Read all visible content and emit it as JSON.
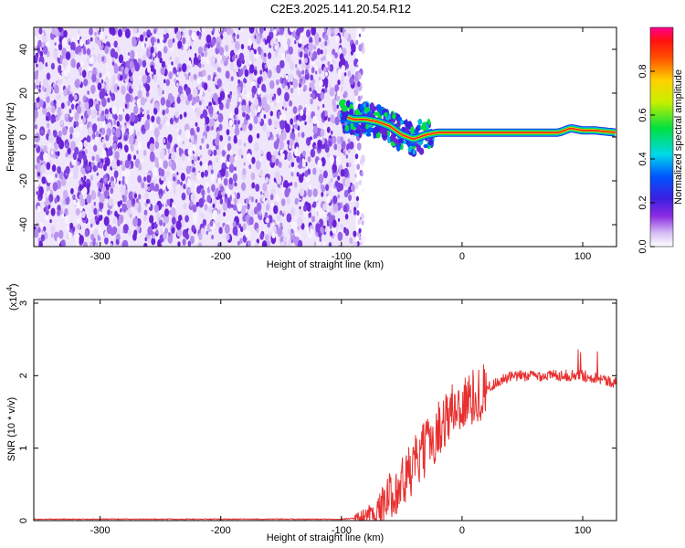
{
  "title": "C2E3.2025.141.20.54.R12",
  "chart_data": [
    {
      "type": "heatmap",
      "xlabel": "Height of straight line (km)",
      "ylabel": "Frequency (Hz)",
      "xlim": [
        -355,
        128
      ],
      "ylim": [
        -50,
        50
      ],
      "xticks": [
        -300,
        -200,
        -100,
        0,
        100
      ],
      "xtick_labels": [
        "-300",
        "-200",
        "-100",
        "0",
        "100"
      ],
      "yticks": [
        -40,
        -20,
        0,
        20,
        40
      ],
      "ytick_labels": [
        "-40",
        "-20",
        "0",
        "20",
        "40"
      ],
      "noise_region_x": [
        -355,
        -88
      ],
      "signal_track": {
        "x": [
          -100,
          -90,
          -80,
          -70,
          -60,
          -50,
          -40,
          -30,
          -20,
          -10,
          0,
          20,
          40,
          60,
          80,
          90,
          100,
          110,
          128
        ],
        "y": [
          10,
          8,
          8,
          7,
          5,
          1,
          -1,
          1,
          2,
          2,
          2,
          2,
          2,
          2,
          2,
          4,
          3,
          3,
          2
        ]
      },
      "colorbar": {
        "label": "Normalized spectral amplitude",
        "range": [
          0,
          1
        ],
        "ticks": [
          0.0,
          0.2,
          0.4,
          0.6,
          0.8
        ],
        "tick_labels": [
          "0.0",
          "0.2",
          "0.4",
          "0.6",
          "0.8"
        ]
      }
    },
    {
      "type": "line",
      "xlabel": "Height of straight line (km)",
      "ylabel": "SNR (10 * v/v)",
      "scale_note": "(x10",
      "scale_exp": "4",
      "scale_close": ")",
      "xlim": [
        -355,
        128
      ],
      "ylim": [
        0,
        3.05
      ],
      "xticks": [
        -300,
        -200,
        -100,
        0,
        100
      ],
      "xtick_labels": [
        "-300",
        "-200",
        "-100",
        "0",
        "100"
      ],
      "yticks": [
        0,
        1,
        2,
        3
      ],
      "ytick_labels": [
        "0",
        "1",
        "2",
        "3"
      ],
      "series": [
        {
          "color": "#e83030",
          "x": [
            -355,
            -100,
            -85,
            -70,
            -60,
            -50,
            -40,
            -30,
            -20,
            -10,
            0,
            10,
            20,
            30,
            40,
            50,
            60,
            70,
            80,
            90,
            100,
            110,
            115,
            120,
            128
          ],
          "y": [
            0.02,
            0.02,
            0.04,
            0.12,
            0.35,
            0.5,
            0.75,
            1.0,
            1.25,
            1.5,
            1.6,
            1.7,
            1.82,
            1.92,
            1.98,
            2.0,
            2.0,
            2.0,
            2.01,
            2.0,
            2.0,
            1.98,
            1.96,
            1.93,
            1.9
          ]
        }
      ]
    }
  ]
}
